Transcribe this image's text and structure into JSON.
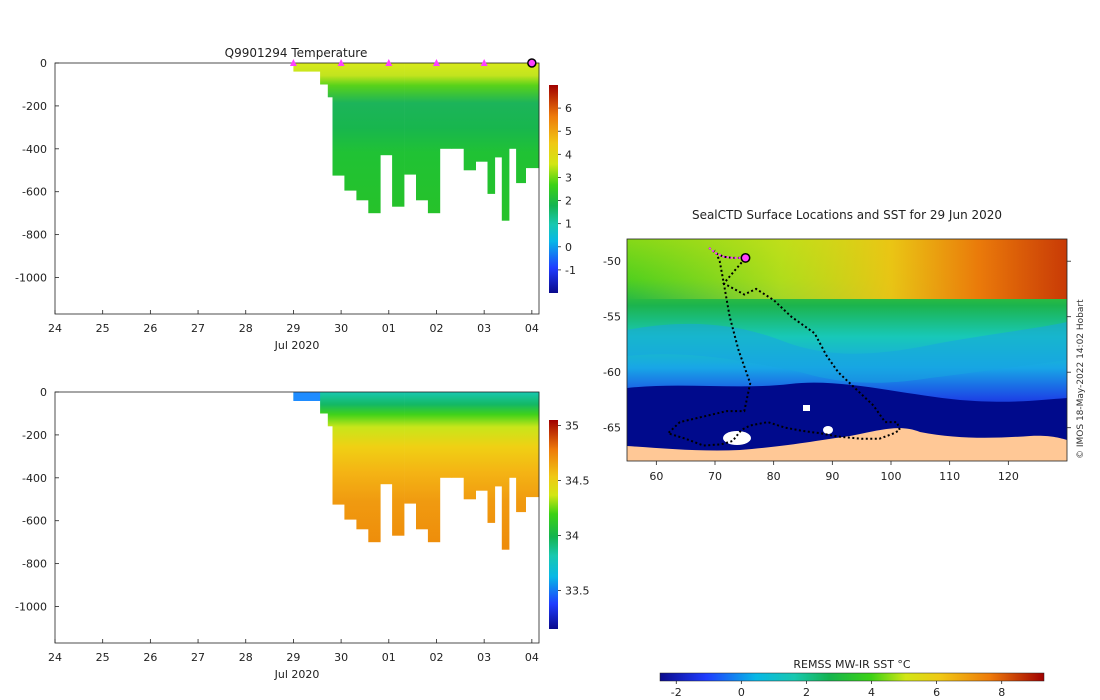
{
  "chart_data": [
    {
      "type": "heatmap",
      "name": "temperature-section",
      "title": "Q9901294  Temperature",
      "xlabel": "Jul 2020",
      "x_ticks": [
        "24",
        "25",
        "26",
        "27",
        "28",
        "29",
        "30",
        "01",
        "02",
        "03",
        "04"
      ],
      "y_ticks": [
        "0",
        "-200",
        "-400",
        "-600",
        "-800",
        "-1000"
      ],
      "xlim_days": [
        0,
        10.15
      ],
      "ylim": [
        -1170,
        0
      ],
      "colorbar": {
        "ticks": [
          "-1",
          "0",
          "1",
          "2",
          "3",
          "4",
          "5",
          "6"
        ],
        "range": [
          -2,
          7
        ]
      },
      "profile_markers_day": [
        5,
        6,
        7,
        8,
        9
      ],
      "current_marker_day": 10,
      "profiles": [
        {
          "day": 5.0,
          "depth": 40
        },
        {
          "day": 5.28,
          "depth": 40
        },
        {
          "day": 5.56,
          "depth": 100
        },
        {
          "day": 5.72,
          "depth": 160
        },
        {
          "day": 5.82,
          "depth": 525
        },
        {
          "day": 6.07,
          "depth": 595
        },
        {
          "day": 6.32,
          "depth": 640
        },
        {
          "day": 6.57,
          "depth": 700
        },
        {
          "day": 6.82,
          "depth": 430
        },
        {
          "day": 7.07,
          "depth": 670
        },
        {
          "day": 7.32,
          "depth": 520
        },
        {
          "day": 7.57,
          "depth": 640
        },
        {
          "day": 7.82,
          "depth": 700
        },
        {
          "day": 8.07,
          "depth": 400
        },
        {
          "day": 8.32,
          "depth": 400
        },
        {
          "day": 8.57,
          "depth": 500
        },
        {
          "day": 8.82,
          "depth": 460
        },
        {
          "day": 9.07,
          "depth": 610
        },
        {
          "day": 9.22,
          "depth": 440
        },
        {
          "day": 9.37,
          "depth": 735
        },
        {
          "day": 9.52,
          "depth": 400
        },
        {
          "day": 9.67,
          "depth": 560
        },
        {
          "day": 9.87,
          "depth": 490
        }
      ]
    },
    {
      "type": "heatmap",
      "name": "salinity-section",
      "xlabel": "Jul 2020",
      "x_ticks": [
        "24",
        "25",
        "26",
        "27",
        "28",
        "29",
        "30",
        "01",
        "02",
        "03",
        "04"
      ],
      "y_ticks": [
        "0",
        "-200",
        "-400",
        "-600",
        "-800",
        "-1000"
      ],
      "colorbar": {
        "ticks": [
          "33.5",
          "34",
          "34.5",
          "35"
        ],
        "range": [
          33.15,
          35.05
        ]
      }
    },
    {
      "type": "heatmap",
      "name": "sst-map",
      "title": "SealCTD Surface Locations and SST for 29 Jun 2020",
      "x_ticks": [
        "60",
        "70",
        "80",
        "90",
        "100",
        "110",
        "120"
      ],
      "y_ticks": [
        "-50",
        "-55",
        "-60",
        "-65"
      ],
      "xlim": [
        55,
        130
      ],
      "ylim": [
        -68.0,
        -48.0
      ],
      "colorbar": {
        "label": "REMSS MW-IR SST °C",
        "ticks": [
          "-2",
          "0",
          "2",
          "4",
          "6",
          "8"
        ],
        "range": [
          -2.5,
          9.3
        ]
      },
      "current_position": {
        "lon": 75.2,
        "lat": -49.7
      },
      "track": [
        [
          69.0,
          -48.8
        ],
        [
          70.2,
          -49.3
        ],
        [
          71.5,
          -49.6
        ],
        [
          73.0,
          -49.7
        ],
        [
          75.2,
          -49.7
        ],
        [
          71.5,
          -52
        ],
        [
          75,
          -53
        ],
        [
          77,
          -52.5
        ],
        [
          80,
          -53.5
        ],
        [
          83,
          -55
        ],
        [
          87,
          -56.5
        ],
        [
          89,
          -58.5
        ],
        [
          91,
          -60
        ],
        [
          94,
          -61.5
        ],
        [
          97,
          -63
        ],
        [
          99,
          -64.5
        ],
        [
          101,
          -64.5
        ],
        [
          101.5,
          -65.2
        ],
        [
          100.5,
          -65.5
        ],
        [
          98,
          -66
        ],
        [
          95,
          -66
        ],
        [
          91,
          -65.8
        ],
        [
          88,
          -65.5
        ],
        [
          85,
          -65.3
        ],
        [
          82,
          -65
        ],
        [
          79,
          -64.5
        ],
        [
          76,
          -64.8
        ],
        [
          74.5,
          -65.2
        ],
        [
          73,
          -66.2
        ],
        [
          71,
          -66.5
        ],
        [
          68,
          -66.6
        ],
        [
          65,
          -66
        ],
        [
          62,
          -65.5
        ],
        [
          64,
          -64.5
        ],
        [
          68,
          -64
        ],
        [
          72,
          -63.5
        ],
        [
          75,
          -63.5
        ],
        [
          76,
          -61
        ],
        [
          74,
          -58
        ],
        [
          72.5,
          -55
        ],
        [
          71.5,
          -52
        ],
        [
          70.8,
          -50
        ],
        [
          70,
          -49
        ]
      ]
    }
  ],
  "watermark": "© IMOS 18-May-2022 14:02 Hobart"
}
